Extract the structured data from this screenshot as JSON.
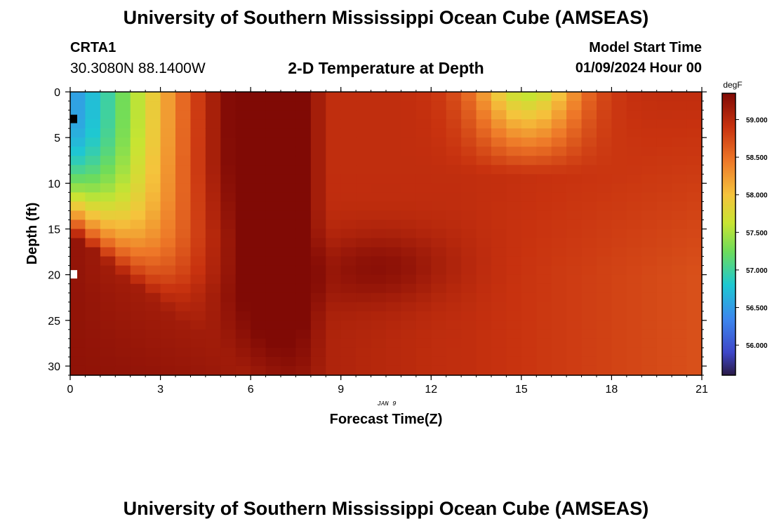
{
  "header": {
    "title": "University of Southern Mississippi Ocean Cube (AMSEAS)",
    "station": "CRTA1",
    "coords": "30.3080N  88.1400W",
    "subtitle": "2-D Temperature at Depth",
    "model_start_label": "Model Start Time",
    "model_start_value": "01/09/2024 Hour 00"
  },
  "footer": {
    "title": "University of Southern Mississippi Ocean Cube (AMSEAS)"
  },
  "chart_data": {
    "type": "heatmap",
    "title": "2-D Temperature at Depth",
    "xlabel": "Forecast Time(Z)",
    "ylabel": "Depth (ft)",
    "date_label": "JAN 9",
    "xlim": [
      0,
      21
    ],
    "ylim": [
      0,
      31
    ],
    "x_ticks": [
      0,
      3,
      6,
      9,
      12,
      15,
      18,
      21
    ],
    "y_ticks": [
      0,
      5,
      10,
      15,
      20,
      25,
      30
    ],
    "x_tick_labels": [
      "0",
      "3",
      "6",
      "9",
      "12",
      "15",
      "18",
      "21"
    ],
    "y_tick_labels": [
      "0",
      "5",
      "10",
      "15",
      "20",
      "25",
      "30"
    ],
    "colorbar": {
      "unit": "degF",
      "min": 55.6,
      "max": 59.35,
      "ticks": [
        56.0,
        56.5,
        57.0,
        57.5,
        58.0,
        58.5,
        59.0
      ],
      "tick_labels": [
        "56.000",
        "56.500",
        "57.000",
        "57.500",
        "58.000",
        "58.500",
        "59.000"
      ]
    },
    "grid_x_step": 0.5,
    "grid_y_step": 1,
    "field_description": "Cold water near surface at hour 0 warming toward 59 degF with depth and time; surface cooling near hours 14-16",
    "special_cells": [
      {
        "x": 0.125,
        "y": 3,
        "color": "#000000"
      },
      {
        "x": 0.125,
        "y": 20,
        "color": "#ffffff"
      }
    ]
  }
}
